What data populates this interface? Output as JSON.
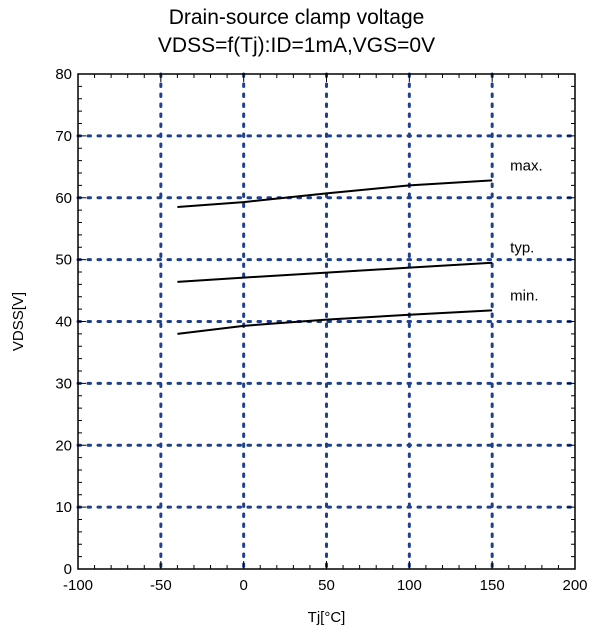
{
  "chart_data": {
    "type": "line",
    "title": "Drain-source clamp voltage",
    "subtitle": "VDSS=f(Tj):ID=1mA,VGS=0V",
    "xlabel": "Tj[°C]",
    "ylabel": "VDSS[V]",
    "xlim": [
      -100,
      200
    ],
    "ylim": [
      0,
      80
    ],
    "xticks": [
      -100,
      -50,
      0,
      50,
      100,
      150,
      200
    ],
    "yticks": [
      0,
      10,
      20,
      30,
      40,
      50,
      60,
      70,
      80
    ],
    "grid": true,
    "grid_color": "#1f3f8f",
    "line_color": "#000000",
    "series": [
      {
        "name": "max.",
        "x": [
          -40,
          0,
          50,
          100,
          150
        ],
        "y": [
          58.5,
          59.3,
          60.7,
          62.0,
          62.8
        ]
      },
      {
        "name": "typ.",
        "x": [
          -40,
          0,
          50,
          100,
          150
        ],
        "y": [
          46.4,
          47.1,
          47.9,
          48.7,
          49.5
        ]
      },
      {
        "name": "min.",
        "x": [
          -40,
          0,
          50,
          100,
          150
        ],
        "y": [
          38.0,
          39.3,
          40.3,
          41.1,
          41.8
        ]
      }
    ]
  }
}
